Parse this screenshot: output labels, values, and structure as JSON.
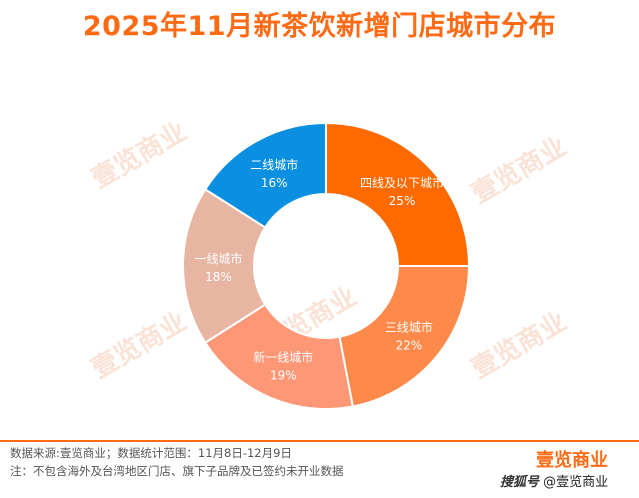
{
  "header": {
    "title": "2025年11月新茶饮新增门店城市分布"
  },
  "chart_data": {
    "type": "pie",
    "hole": true,
    "slices": [
      {
        "label": "四线及以下城市",
        "value": 25,
        "value_label": "25%",
        "color": "#ff6a00"
      },
      {
        "label": "三线城市",
        "value": 22,
        "value_label": "22%",
        "color": "#fd8a4a"
      },
      {
        "label": "新一线城市",
        "value": 19,
        "value_label": "19%",
        "color": "#fe9776"
      },
      {
        "label": "一线城市",
        "value": 18,
        "value_label": "18%",
        "color": "#e8b5a3"
      },
      {
        "label": "二线城市",
        "value": 16,
        "value_label": "16%",
        "color": "#0b8fe0"
      }
    ]
  },
  "watermark": {
    "text": "壹览商业"
  },
  "footer": {
    "source": "数据来源:壹览商业；数据统计范围：11月8日-12月9日",
    "note": "注：不包含海外及台湾地区门店、旗下子品牌及已签约未开业数据",
    "brand": "壹览商业",
    "credit_platform": "搜狐号",
    "credit_name": "@壹览商业"
  }
}
